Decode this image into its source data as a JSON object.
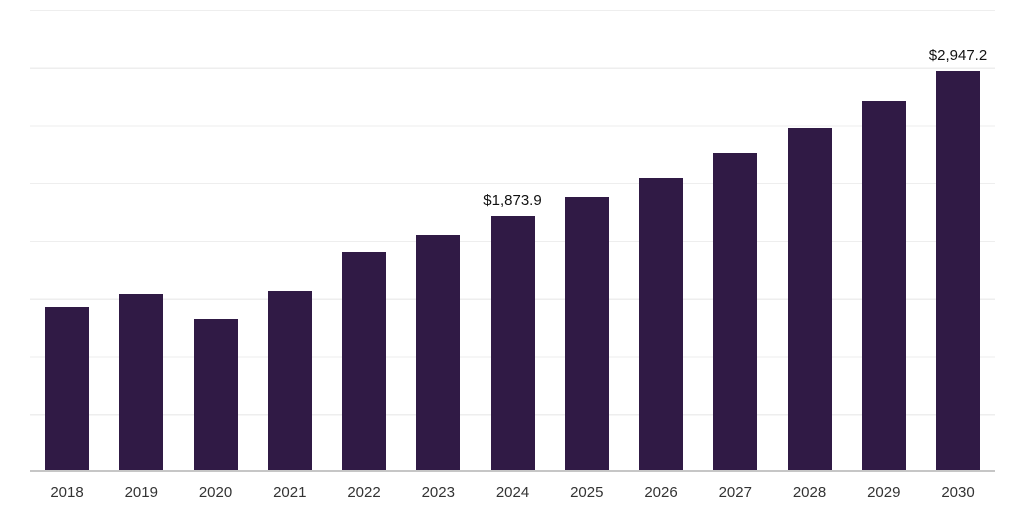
{
  "chart_data": {
    "type": "bar",
    "title": "",
    "xlabel": "",
    "ylabel": "",
    "categories": [
      "2018",
      "2019",
      "2020",
      "2021",
      "2022",
      "2023",
      "2024",
      "2025",
      "2026",
      "2027",
      "2028",
      "2029",
      "2030"
    ],
    "values": [
      1205,
      1300,
      1115,
      1325,
      1610,
      1740,
      1873.9,
      2015,
      2160,
      2340,
      2525,
      2725,
      2947.2
    ],
    "bar_labels": [
      "",
      "",
      "",
      "",
      "",
      "",
      "$1,873.9",
      "",
      "",
      "",
      "",
      "",
      "$2,947.2"
    ],
    "ylim": [
      0,
      3400
    ],
    "grid": "horizontal",
    "legend": "none",
    "bar_color": "#301a45",
    "gridline_color": "#eeeeee",
    "axis_line_color": "#c6c6c6",
    "axis_text_color": "#333333",
    "value_label_color": "#111111",
    "background_color": "#ffffff"
  }
}
